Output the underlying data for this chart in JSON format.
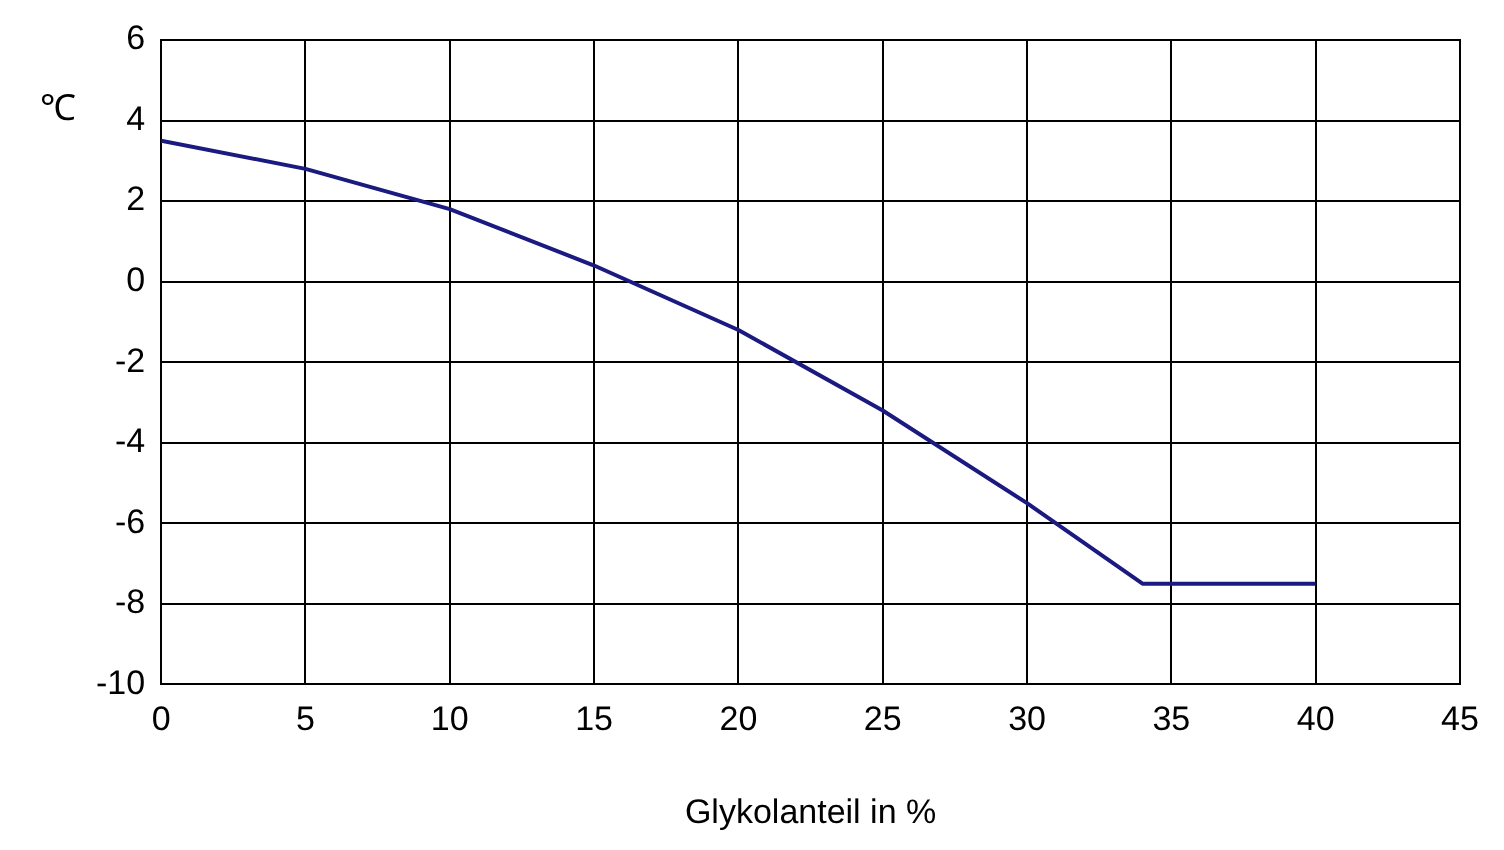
{
  "chart_data": {
    "type": "line",
    "xlabel": "Glykolanteil in %",
    "ylabel": "℃",
    "x": [
      0,
      5,
      10,
      15,
      20,
      25,
      30,
      34,
      40
    ],
    "series": [
      {
        "color": "#1a1a80",
        "values": [
          3.5,
          2.8,
          1.8,
          0.4,
          -1.2,
          -3.2,
          -5.5,
          -7.5,
          -7.5
        ]
      }
    ],
    "xlim": [
      0,
      45
    ],
    "xticks": [
      0,
      5,
      10,
      15,
      20,
      25,
      30,
      35,
      40,
      45
    ],
    "ylim": [
      -10,
      6
    ],
    "yticks": [
      -10,
      -8,
      -6,
      -4,
      -2,
      0,
      2,
      4,
      6
    ],
    "grid": true,
    "legend": false,
    "marker": "none",
    "line_style": "solid"
  }
}
